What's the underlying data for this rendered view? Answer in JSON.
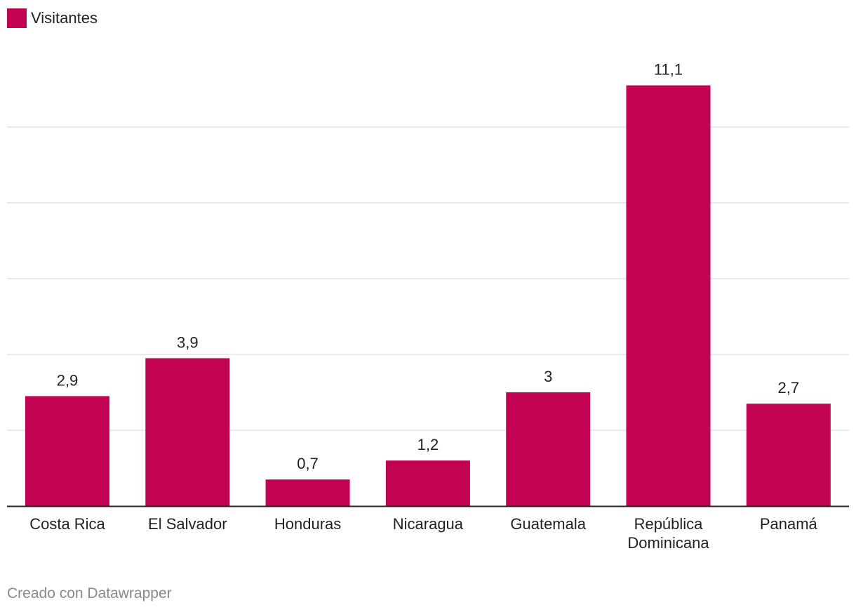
{
  "legend": {
    "label": "Visitantes",
    "color": "#C20252"
  },
  "footer": {
    "credit": "Creado con Datawrapper"
  },
  "chart_data": {
    "type": "bar",
    "title": "",
    "xlabel": "",
    "ylabel": "",
    "categories": [
      "Costa Rica",
      "El Salvador",
      "Honduras",
      "Nicaragua",
      "Guatemala",
      "República Dominicana",
      "Panamá"
    ],
    "category_lines": [
      [
        "Costa Rica"
      ],
      [
        "El Salvador"
      ],
      [
        "Honduras"
      ],
      [
        "Nicaragua"
      ],
      [
        "Guatemala"
      ],
      [
        "República",
        "Dominicana"
      ],
      [
        "Panamá"
      ]
    ],
    "series": [
      {
        "name": "Visitantes",
        "values": [
          2.9,
          3.9,
          0.7,
          1.2,
          3,
          11.1,
          2.7
        ],
        "labels": [
          "2,9",
          "3,9",
          "0,7",
          "1,2",
          "3",
          "11,1",
          "2,7"
        ],
        "color": "#C20252"
      }
    ],
    "ylim": [
      0,
      12
    ],
    "gridlines": [
      2,
      4,
      6,
      8,
      10
    ],
    "grid": true,
    "legend_position": "top-left"
  }
}
